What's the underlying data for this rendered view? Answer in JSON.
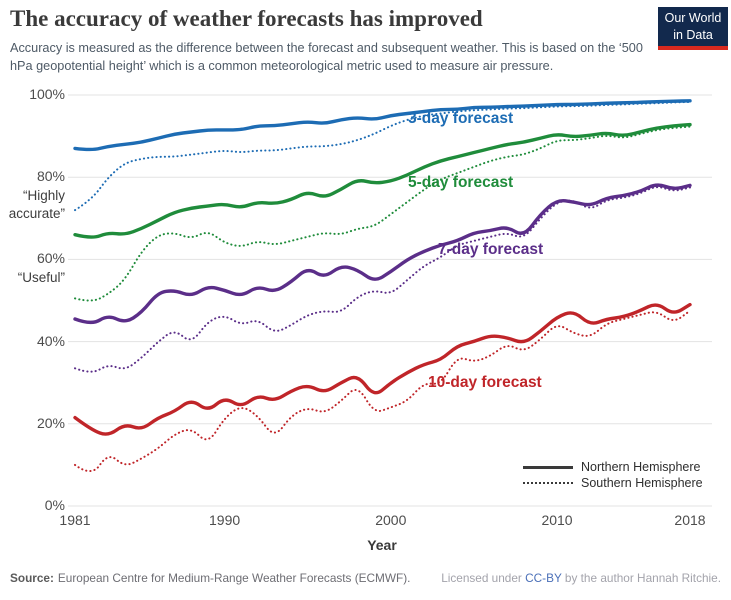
{
  "header": {
    "title": "The accuracy of weather forecasts has improved",
    "subtitle": "Accuracy is measured as the difference between the forecast and subsequent weather. This is based on the ‘500 hPa geopotential height’ which is a common meteorological metric used to measure air pressure.",
    "logo": {
      "line1": "Our World",
      "line2": "in Data",
      "bg_color": "#12294d",
      "stripe_color": "#d8291f"
    }
  },
  "chart_data": {
    "type": "line",
    "title": "The accuracy of weather forecasts has improved",
    "xlabel": "Year",
    "ylabel": "",
    "x_range": [
      1981,
      2018
    ],
    "y_range": [
      0,
      100
    ],
    "grid": true,
    "legend_position": "bottom-right",
    "x_ticks": [
      {
        "label": "1981",
        "value": 1981
      },
      {
        "label": "1990",
        "value": 1990
      },
      {
        "label": "2000",
        "value": 2000
      },
      {
        "label": "2010",
        "value": 2010
      },
      {
        "label": "2018",
        "value": 2018
      }
    ],
    "y_ticks": [
      {
        "label": "0%",
        "value": 0
      },
      {
        "label": "20%",
        "value": 20
      },
      {
        "label": "40%",
        "value": 40
      },
      {
        "label": "60%",
        "value": 60
      },
      {
        "label": "80%",
        "value": 80
      },
      {
        "label": "100%",
        "value": 100
      }
    ],
    "y_axis_annotations": [
      {
        "lines": [
          "“Highly",
          "accurate”"
        ],
        "value": 80
      },
      {
        "lines": [
          "“Useful”"
        ],
        "value": 60
      }
    ],
    "legend": [
      {
        "label": "Northern Hemisphere",
        "style": "solid"
      },
      {
        "label": "Southern Hemisphere",
        "style": "dotted"
      }
    ],
    "line_labels": [
      {
        "text": "3-day forecast",
        "color": "#1d6cb4"
      },
      {
        "text": "5-day forecast",
        "color": "#1f8c3b"
      },
      {
        "text": "7-day forecast",
        "color": "#5b2e89"
      },
      {
        "text": "10-day forecast",
        "color": "#c02529"
      }
    ],
    "years": [
      1981,
      1982,
      1983,
      1984,
      1985,
      1986,
      1987,
      1988,
      1989,
      1990,
      1991,
      1992,
      1993,
      1994,
      1995,
      1996,
      1997,
      1998,
      1999,
      2000,
      2001,
      2002,
      2003,
      2004,
      2005,
      2006,
      2007,
      2008,
      2009,
      2010,
      2011,
      2012,
      2013,
      2014,
      2015,
      2016,
      2017,
      2018
    ],
    "series": [
      {
        "name": "3-day forecast — Northern Hemisphere",
        "forecast": "3-day",
        "hemisphere": "Northern",
        "style": "solid",
        "color": "#1d6cb4",
        "values": [
          87,
          86.5,
          87.5,
          88,
          88.5,
          89.5,
          90.5,
          91,
          91.5,
          91.5,
          91.5,
          92.5,
          92.5,
          93,
          93.5,
          93,
          94,
          94.5,
          94,
          95,
          95.5,
          96,
          96.5,
          96.5,
          97,
          97,
          97.2,
          97.3,
          97.5,
          97.7,
          97.7,
          97.8,
          98,
          98.1,
          98.2,
          98.4,
          98.5,
          98.6
        ]
      },
      {
        "name": "3-day forecast — Southern Hemisphere",
        "forecast": "3-day",
        "hemisphere": "Southern",
        "style": "dotted",
        "color": "#1d6cb4",
        "values": [
          72,
          74.5,
          80,
          83.5,
          84.5,
          85,
          85,
          85.5,
          86,
          86.5,
          86,
          86.5,
          86.5,
          87,
          87.5,
          87.5,
          88,
          89,
          90.5,
          92.5,
          94,
          95,
          95.5,
          96,
          96.3,
          96.5,
          96.7,
          96.8,
          97,
          97.2,
          97.3,
          97.4,
          97.6,
          97.7,
          97.9,
          98,
          98.2,
          98.3
        ]
      },
      {
        "name": "5-day forecast — Northern Hemisphere",
        "forecast": "5-day",
        "hemisphere": "Northern",
        "style": "solid",
        "color": "#1f8c3b",
        "values": [
          66,
          65,
          66.5,
          66,
          67.5,
          69.5,
          71.5,
          72.5,
          73,
          73.5,
          72.5,
          74,
          73.5,
          74.5,
          76.5,
          75,
          77,
          79.5,
          78.5,
          79,
          80.5,
          82.5,
          84,
          85,
          86,
          87,
          88,
          88.5,
          89.5,
          90.5,
          89.8,
          90.2,
          90.8,
          90,
          91,
          92,
          92.5,
          92.8
        ]
      },
      {
        "name": "5-day forecast — Southern Hemisphere",
        "forecast": "5-day",
        "hemisphere": "Southern",
        "style": "dotted",
        "color": "#1f8c3b",
        "values": [
          50.5,
          49.5,
          51.5,
          55,
          62,
          66,
          66.5,
          65,
          67,
          64,
          63,
          64.5,
          63.5,
          64.5,
          65.5,
          66.5,
          66,
          67.5,
          68,
          71,
          74,
          77,
          79.5,
          81,
          82.5,
          84,
          85,
          85.5,
          87,
          89,
          89,
          89.5,
          90.2,
          89.5,
          90.5,
          91.5,
          92,
          92.3
        ]
      },
      {
        "name": "7-day forecast — Northern Hemisphere",
        "forecast": "7-day",
        "hemisphere": "Northern",
        "style": "solid",
        "color": "#5b2e89",
        "values": [
          45.5,
          44,
          46.5,
          44.5,
          47,
          52,
          52.5,
          51,
          53.5,
          52.5,
          51,
          53.5,
          52,
          54.5,
          58,
          55.5,
          58.5,
          57.5,
          54.5,
          57,
          60,
          62,
          63.5,
          64.5,
          66.5,
          67,
          68,
          65.5,
          71,
          74.5,
          74,
          73,
          75,
          75.5,
          76.5,
          78.5,
          77,
          78
        ]
      },
      {
        "name": "7-day forecast — Southern Hemisphere",
        "forecast": "7-day",
        "hemisphere": "Southern",
        "style": "dotted",
        "color": "#5b2e89",
        "values": [
          33.5,
          32,
          34.5,
          33,
          36,
          40,
          43,
          39.5,
          45,
          46.5,
          44,
          45.5,
          42,
          44,
          46.5,
          47.5,
          47,
          51,
          52.5,
          51.5,
          55,
          58.5,
          60.5,
          63.5,
          64.5,
          65.5,
          66.5,
          65,
          70,
          74,
          74.5,
          72,
          74.5,
          75,
          76,
          78,
          76.5,
          77.5
        ]
      },
      {
        "name": "10-day forecast — Northern Hemisphere",
        "forecast": "10-day",
        "hemisphere": "Northern",
        "style": "solid",
        "color": "#c02529",
        "values": [
          21.5,
          18.5,
          17,
          20,
          18.5,
          21.5,
          23,
          26,
          23,
          26.5,
          24,
          27,
          25.5,
          28,
          29.5,
          27.5,
          30,
          32,
          26.5,
          30,
          32.5,
          34.5,
          35.5,
          39,
          40,
          41.5,
          41,
          39.5,
          42.5,
          46,
          47.5,
          44,
          45.5,
          46,
          47.5,
          49.5,
          46.5,
          49
        ]
      },
      {
        "name": "10-day forecast — Southern Hemisphere",
        "forecast": "10-day",
        "hemisphere": "Southern",
        "style": "dotted",
        "color": "#c02529",
        "values": [
          10,
          7,
          13,
          9.5,
          11.5,
          14,
          17.5,
          19,
          15,
          21.5,
          24.5,
          22,
          16.5,
          22,
          24,
          22.5,
          25.5,
          29.5,
          22.5,
          24,
          25.5,
          30,
          29.5,
          36.5,
          35,
          36.5,
          39.5,
          37.5,
          40.5,
          44.5,
          42,
          41,
          44.5,
          45.5,
          46.5,
          47.5,
          44.5,
          47.5
        ]
      }
    ]
  },
  "footer": {
    "source_label": "Source:",
    "source_text": "European Centre for Medium-Range Weather Forecasts (ECMWF).",
    "license_prefix": "Licensed under ",
    "license_link": "CC-BY",
    "license_suffix": " by the author Hannah Ritchie."
  }
}
